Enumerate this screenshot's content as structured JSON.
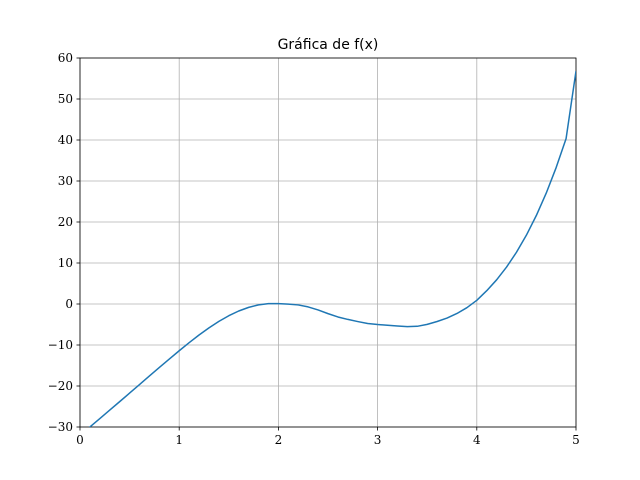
{
  "chart_data": {
    "type": "line",
    "title": "Gráfica de f(x)",
    "xlabel": "",
    "ylabel": "",
    "xlim": [
      0,
      5
    ],
    "ylim": [
      -30,
      60
    ],
    "grid": true,
    "x_ticks": [
      {
        "value": 0,
        "label": "0"
      },
      {
        "value": 1,
        "label": "1"
      },
      {
        "value": 2,
        "label": "2"
      },
      {
        "value": 3,
        "label": "3"
      },
      {
        "value": 4,
        "label": "4"
      },
      {
        "value": 5,
        "label": "5"
      }
    ],
    "y_ticks": [
      {
        "value": -30,
        "label": "−30"
      },
      {
        "value": -20,
        "label": "−20"
      },
      {
        "value": -10,
        "label": "−10"
      },
      {
        "value": 0,
        "label": "0"
      },
      {
        "value": 10,
        "label": "10"
      },
      {
        "value": 20,
        "label": "20"
      },
      {
        "value": 30,
        "label": "30"
      },
      {
        "value": 40,
        "label": "40"
      },
      {
        "value": 50,
        "label": "50"
      },
      {
        "value": 60,
        "label": "60"
      }
    ],
    "series": [
      {
        "color": "#1f77b4",
        "x": [
          0.0,
          0.1,
          0.2,
          0.3,
          0.4,
          0.5,
          0.6,
          0.7,
          0.8,
          0.9,
          1.0,
          1.1,
          1.2,
          1.3,
          1.4,
          1.5,
          1.6,
          1.7,
          1.8,
          1.9,
          2.0,
          2.1,
          2.2,
          2.3,
          2.4,
          2.5,
          2.6,
          2.7,
          2.8,
          2.9,
          3.0,
          3.1,
          3.2,
          3.3,
          3.4,
          3.5,
          3.6,
          3.7,
          3.8,
          3.9,
          4.0,
          4.1,
          4.2,
          4.3,
          4.4,
          4.5,
          4.6,
          4.7,
          4.8,
          4.9,
          5.0
        ],
        "y": [
          -32.0,
          -29.98,
          -27.94,
          -25.88,
          -23.81,
          -21.73,
          -19.64,
          -17.55,
          -15.48,
          -13.42,
          -11.4,
          -9.43,
          -7.56,
          -5.82,
          -4.24,
          -2.86,
          -1.71,
          -0.82,
          -0.22,
          0.09,
          0.1,
          -0.02,
          -0.23,
          -0.71,
          -1.45,
          -2.35,
          -3.16,
          -3.76,
          -4.28,
          -4.75,
          -5.0,
          -5.19,
          -5.35,
          -5.52,
          -5.44,
          -4.97,
          -4.27,
          -3.42,
          -2.31,
          -0.9,
          0.9,
          3.24,
          5.9,
          9.01,
          12.62,
          16.79,
          21.58,
          27.05,
          33.28,
          40.34,
          56.8
        ]
      }
    ]
  }
}
